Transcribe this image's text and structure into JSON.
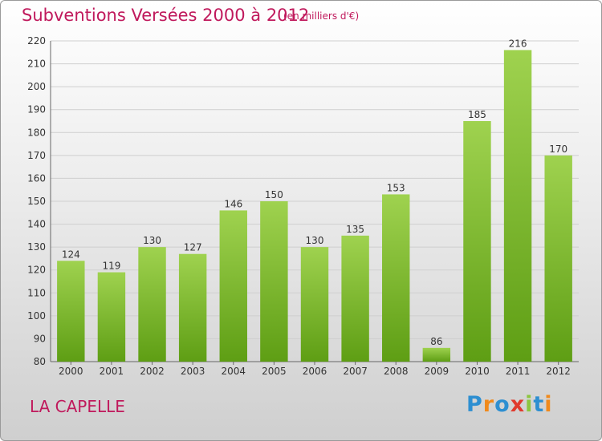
{
  "title": "Subventions Versées 2000 à 2012",
  "subtitle": "(en milliers d'€)",
  "commune": "LA CAPELLE",
  "logo": "Proxiti",
  "chart_data": {
    "type": "bar",
    "categories": [
      "2000",
      "2001",
      "2002",
      "2003",
      "2004",
      "2005",
      "2006",
      "2007",
      "2008",
      "2009",
      "2010",
      "2011",
      "2012"
    ],
    "values": [
      124,
      119,
      130,
      127,
      146,
      150,
      130,
      135,
      153,
      86,
      185,
      216,
      170
    ],
    "ylim": [
      80,
      220
    ],
    "yticks": [
      80,
      90,
      100,
      110,
      120,
      130,
      140,
      150,
      160,
      170,
      180,
      190,
      200,
      210,
      220
    ],
    "grid": true,
    "bar_color_top": "#9fd24f",
    "bar_color_bottom": "#5e9e14"
  }
}
